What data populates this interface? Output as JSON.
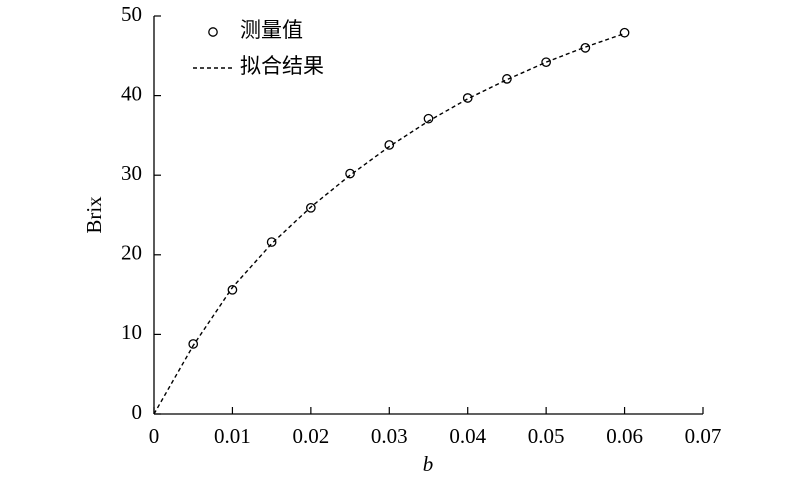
{
  "chart_data": {
    "type": "scatter",
    "x_label": "b",
    "y_label": "Brix",
    "series": [
      {
        "name": "测量值",
        "mode": "markers",
        "color": "#000000",
        "x": [
          0.005,
          0.01,
          0.015,
          0.02,
          0.025,
          0.03,
          0.035,
          0.04,
          0.045,
          0.05,
          0.055,
          0.06
        ],
        "values": [
          8.8,
          15.6,
          21.6,
          25.9,
          30.2,
          33.8,
          37.1,
          39.7,
          42.1,
          44.2,
          46.0,
          47.9
        ]
      },
      {
        "name": "拟合结果",
        "mode": "dashed-line",
        "color": "#000000",
        "x": [
          0,
          0.005,
          0.01,
          0.015,
          0.02,
          0.025,
          0.03,
          0.035,
          0.04,
          0.045,
          0.05,
          0.055,
          0.06
        ],
        "values": [
          0,
          8.6,
          15.9,
          21.4,
          26.0,
          30.0,
          33.6,
          36.8,
          39.6,
          42.0,
          44.2,
          46.1,
          47.8
        ]
      }
    ],
    "xlim": [
      0,
      0.07
    ],
    "xticks": [
      0,
      0.01,
      0.02,
      0.03,
      0.04,
      0.05,
      0.06,
      0.07
    ],
    "ylim": [
      0,
      50
    ],
    "yticks": [
      0,
      10,
      20,
      30,
      40,
      50
    ],
    "grid": false,
    "legend": "top-left"
  }
}
